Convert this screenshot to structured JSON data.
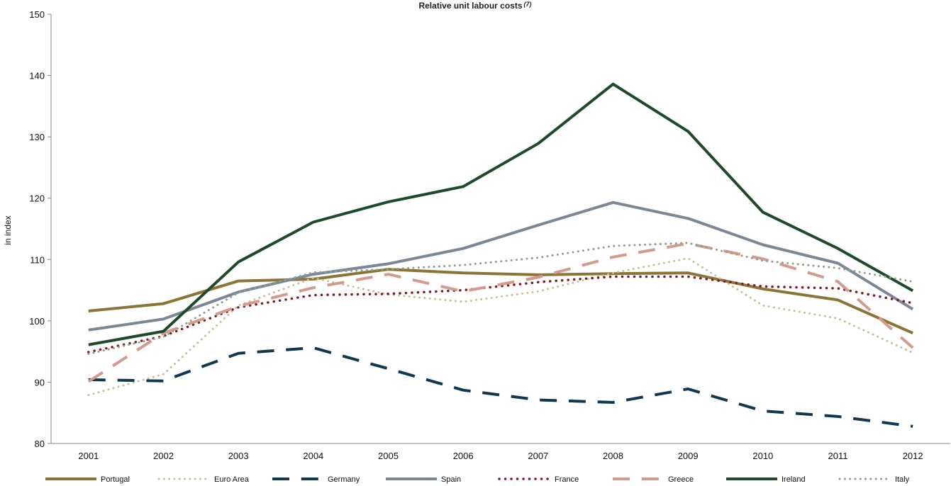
{
  "chart_data": {
    "type": "line",
    "title": "Relative unit labour costs",
    "title_superscript": "(7)",
    "ylabel": "in index",
    "xlabel": "",
    "ylim": [
      80,
      150
    ],
    "yticks": [
      80,
      90,
      100,
      110,
      120,
      130,
      140,
      150
    ],
    "categories": [
      "2001",
      "2002",
      "2003",
      "2004",
      "2005",
      "2006",
      "2007",
      "2008",
      "2009",
      "2010",
      "2011",
      "2012"
    ],
    "grid": false,
    "legend_position": "bottom",
    "series": [
      {
        "name": "Portugal",
        "color": "#8B7436",
        "style": "solid",
        "width": 4,
        "values": [
          101.6,
          102.8,
          106.5,
          106.8,
          108.4,
          107.8,
          107.5,
          107.7,
          107.8,
          105.2,
          103.4,
          98.0
        ]
      },
      {
        "name": "Euro Area",
        "color": "#CDBE98",
        "style": "dotted",
        "width": 3,
        "values": [
          87.9,
          91.3,
          102.5,
          107.0,
          104.3,
          103.1,
          104.8,
          107.8,
          110.2,
          102.5,
          100.4,
          94.8
        ]
      },
      {
        "name": "Germany",
        "color": "#10384F",
        "style": "dashed",
        "width": 4,
        "values": [
          90.4,
          90.2,
          94.7,
          95.6,
          92.2,
          88.7,
          87.1,
          86.7,
          88.9,
          85.3,
          84.4,
          82.8
        ]
      },
      {
        "name": "Spain",
        "color": "#7A8797",
        "style": "solid",
        "width": 4,
        "values": [
          98.5,
          100.3,
          104.7,
          107.6,
          109.3,
          111.8,
          115.6,
          119.3,
          116.7,
          112.4,
          109.4,
          101.9
        ]
      },
      {
        "name": "France",
        "color": "#7E1A22",
        "style": "dotted",
        "width": 3.5,
        "values": [
          94.9,
          97.5,
          102.2,
          104.2,
          104.4,
          105.0,
          106.3,
          107.2,
          107.2,
          105.6,
          105.3,
          102.9
        ]
      },
      {
        "name": "Greece",
        "color": "#D49A8E",
        "style": "dashed",
        "width": 4,
        "values": [
          90.1,
          98.0,
          102.4,
          105.4,
          107.6,
          104.8,
          107.1,
          110.4,
          112.6,
          110.1,
          106.4,
          95.6
        ]
      },
      {
        "name": "Ireland",
        "color": "#1E4A2C",
        "style": "solid",
        "width": 4,
        "values": [
          96.1,
          98.3,
          109.6,
          116.1,
          119.4,
          121.9,
          128.9,
          138.6,
          130.9,
          117.7,
          111.8,
          104.9
        ]
      },
      {
        "name": "Italy",
        "color": "#8FA08C",
        "style": "dotted",
        "width": 3,
        "values": [
          94.6,
          97.4,
          104.6,
          107.9,
          108.4,
          109.1,
          110.3,
          112.2,
          112.7,
          109.8,
          108.6,
          106.4
        ]
      }
    ]
  }
}
